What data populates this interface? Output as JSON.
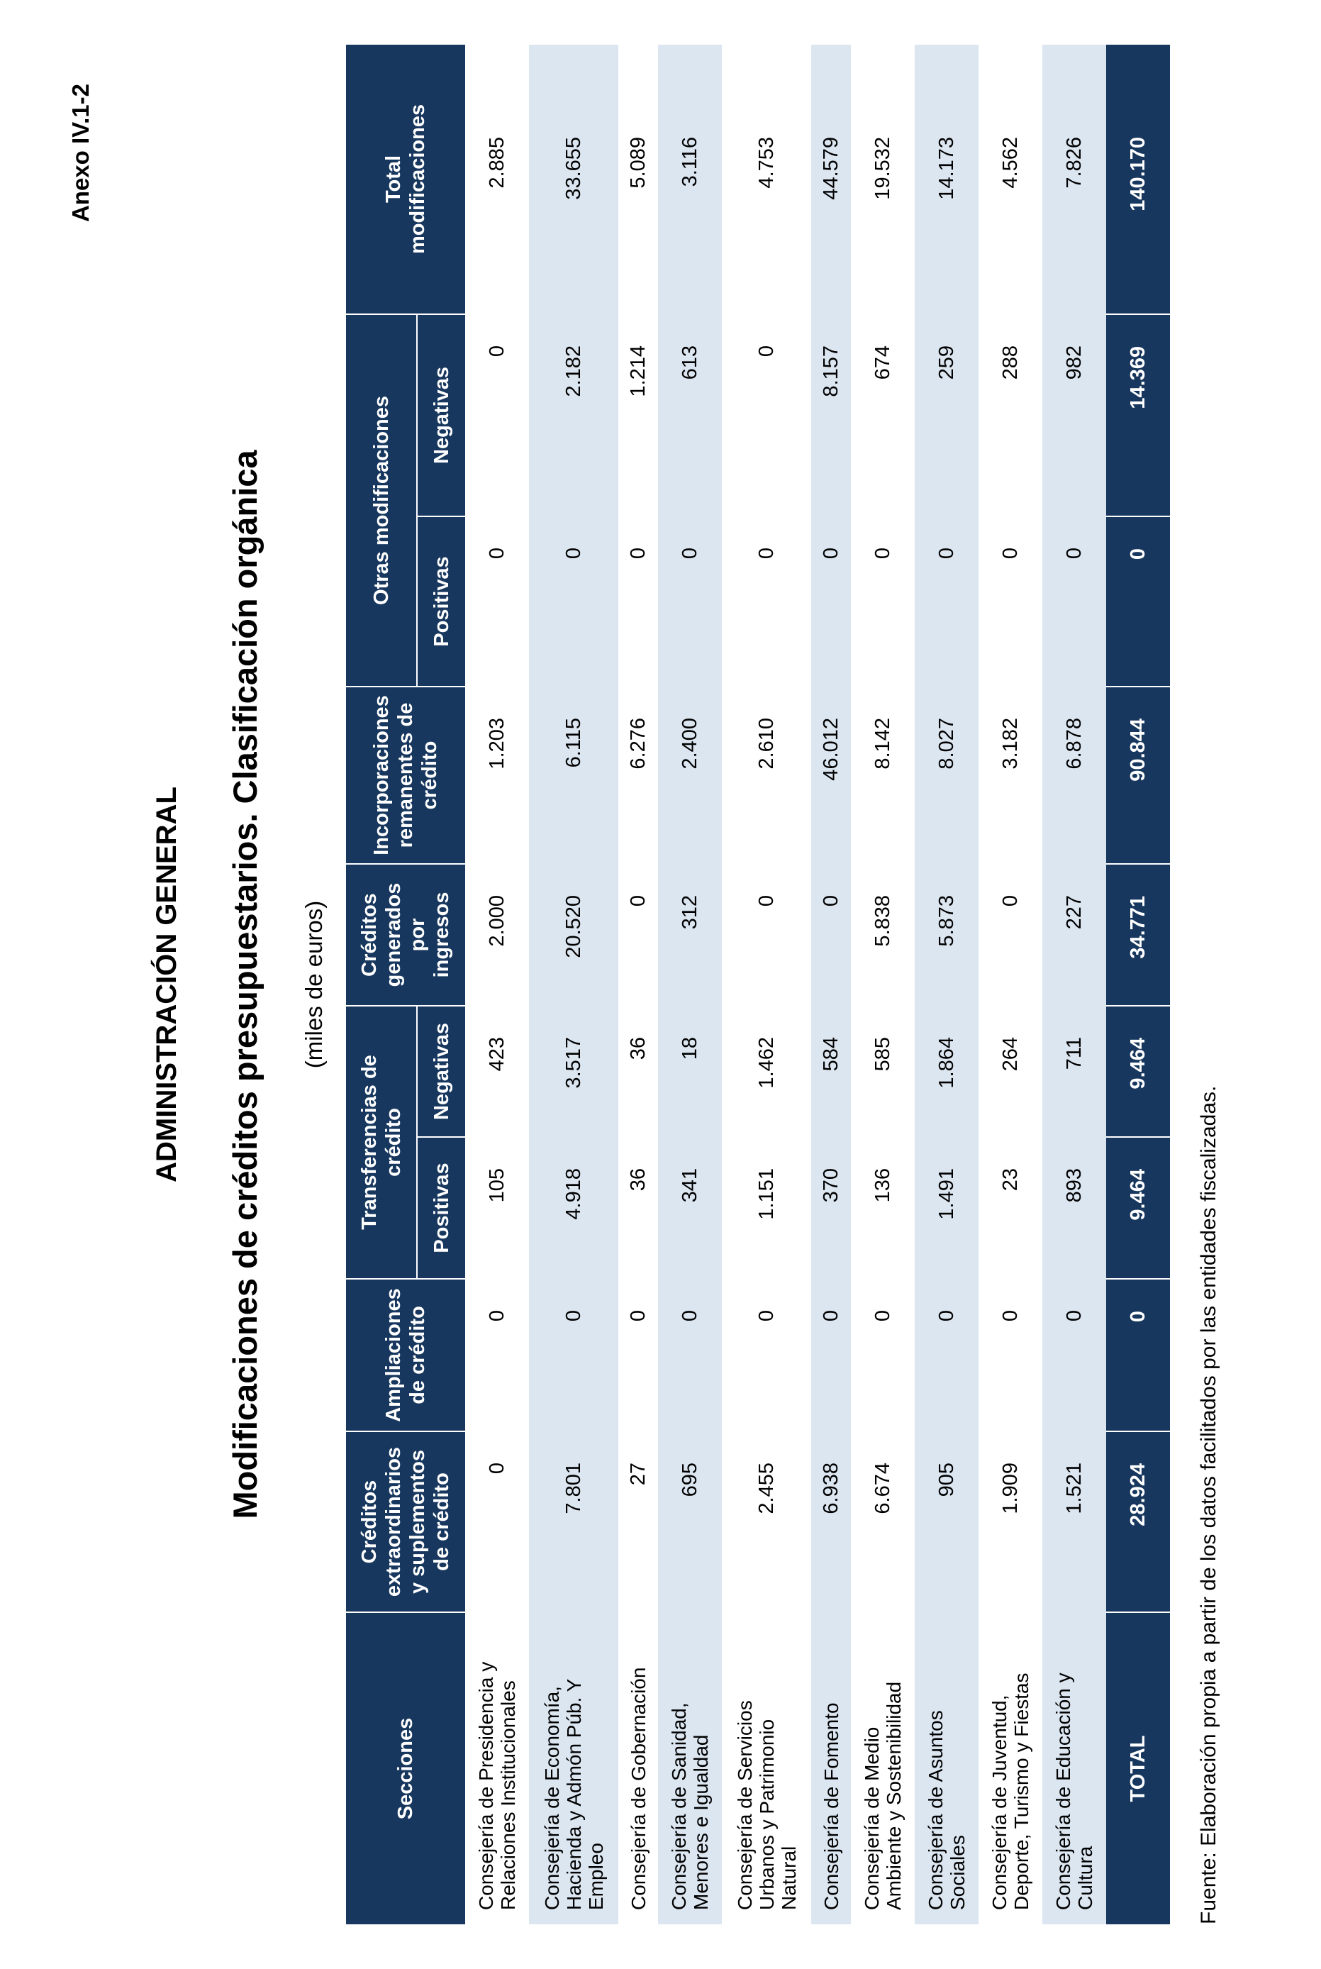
{
  "page": {
    "annex_label": "Anexo IV.1-2",
    "title": "ADMINISTRACIÓN GENERAL",
    "subtitle": "Modificaciones de créditos presupuestarios. Clasificación orgánica",
    "units_note": "(miles de euros)",
    "footer": "Fuente: Elaboración propia a partir de los datos facilitados por las entidades fiscalizadas."
  },
  "colors": {
    "header_bg": "#17375E",
    "stripe_bg": "#DCE6F1",
    "header_text": "#FFFFFF",
    "body_text": "#000000"
  },
  "table": {
    "headers": {
      "secciones": "Secciones",
      "cred_extra": "Créditos\nextraordinarios\ny suplementos\nde crédito",
      "ampliaciones": "Ampliaciones\nde crédito",
      "transferencias": "Transferencias de\ncrédito",
      "cred_generados": "Créditos\ngenerados\npor\ningresos",
      "incorporaciones": "Incorporaciones\nremanentes de\ncrédito",
      "otras": "Otras modificaciones",
      "total": "Total\nmodificaciones",
      "positivas": "Positivas",
      "negativas": "Negativas"
    },
    "rows": [
      {
        "name": "Consejería de Presidencia y\nRelaciones Institucionales",
        "lines": 2,
        "values": [
          "0",
          "0",
          "105",
          "423",
          "2.000",
          "1.203",
          "0",
          "0",
          "2.885"
        ]
      },
      {
        "name": "Consejería de Economía,\nHacienda y Admón Púb. Y\nEmpleo",
        "lines": 3,
        "values": [
          "7.801",
          "0",
          "4.918",
          "3.517",
          "20.520",
          "6.115",
          "0",
          "2.182",
          "33.655"
        ]
      },
      {
        "name": "Consejería de Gobernación",
        "lines": 1,
        "values": [
          "27",
          "0",
          "36",
          "36",
          "0",
          "6.276",
          "0",
          "1.214",
          "5.089"
        ]
      },
      {
        "name": "Consejería de Sanidad,\nMenores e Igualdad",
        "lines": 2,
        "values": [
          "695",
          "0",
          "341",
          "18",
          "312",
          "2.400",
          "0",
          "613",
          "3.116"
        ]
      },
      {
        "name": "Consejería de Servicios\nUrbanos y Patrimonio\nNatural",
        "lines": 3,
        "values": [
          "2.455",
          "0",
          "1.151",
          "1.462",
          "0",
          "2.610",
          "0",
          "0",
          "4.753"
        ]
      },
      {
        "name": "Consejería de Fomento",
        "lines": 1,
        "values": [
          "6.938",
          "0",
          "370",
          "584",
          "0",
          "46.012",
          "0",
          "8.157",
          "44.579"
        ]
      },
      {
        "name": "Consejería de Medio\nAmbiente y Sostenibilidad",
        "lines": 2,
        "values": [
          "6.674",
          "0",
          "136",
          "585",
          "5.838",
          "8.142",
          "0",
          "674",
          "19.532"
        ]
      },
      {
        "name": "Consejería de Asuntos\nSociales",
        "lines": 2,
        "values": [
          "905",
          "0",
          "1.491",
          "1.864",
          "5.873",
          "8.027",
          "0",
          "259",
          "14.173"
        ]
      },
      {
        "name": "Consejería de Juventud,\nDeporte, Turismo y Fiestas",
        "lines": 2,
        "values": [
          "1.909",
          "0",
          "23",
          "264",
          "0",
          "3.182",
          "0",
          "288",
          "4.562"
        ]
      },
      {
        "name": "Consejería de Educación y\nCultura",
        "lines": 2,
        "values": [
          "1.521",
          "0",
          "893",
          "711",
          "227",
          "6.878",
          "0",
          "982",
          "7.826"
        ]
      }
    ],
    "total_row": {
      "label": "TOTAL",
      "values": [
        "28.924",
        "0",
        "9.464",
        "9.464",
        "34.771",
        "90.844",
        "0",
        "14.369",
        "140.170"
      ]
    }
  }
}
